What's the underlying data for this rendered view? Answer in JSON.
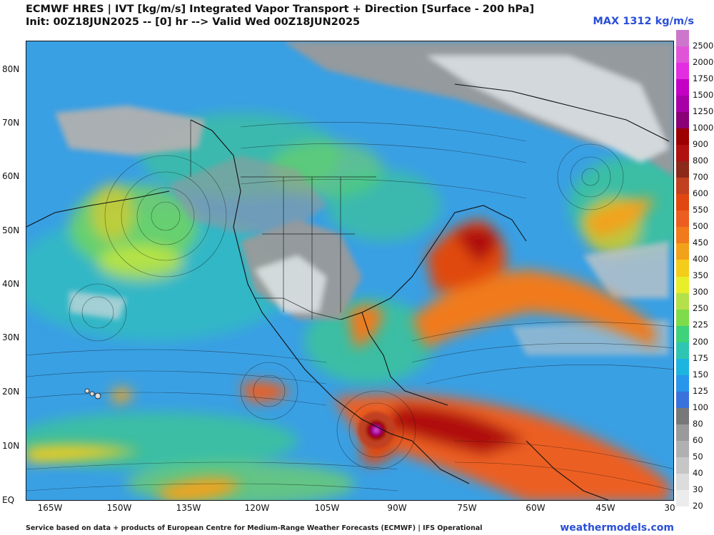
{
  "header": {
    "title_line1": "ECMWF HRES | IVT [kg/m/s] Integrated Vapor Transport + Direction [Surface - 200 hPa]",
    "title_line2": "Init: 00Z18JUN2025 -- [0] hr --> Valid Wed 00Z18JUN2025",
    "max_label": "MAX 1312 kg/m/s"
  },
  "axes": {
    "lat_labels": [
      "80N",
      "70N",
      "60N",
      "50N",
      "40N",
      "30N",
      "20N",
      "10N",
      "EQ"
    ],
    "lon_labels": [
      "165W",
      "150W",
      "135W",
      "120W",
      "105W",
      "90W",
      "75W",
      "60W",
      "45W",
      "30"
    ]
  },
  "legend": {
    "values": [
      "2500",
      "2000",
      "1750",
      "1500",
      "1250",
      "1000",
      "900",
      "800",
      "700",
      "600",
      "550",
      "500",
      "450",
      "400",
      "350",
      "300",
      "250",
      "225",
      "200",
      "175",
      "150",
      "125",
      "100",
      "80",
      "60",
      "50",
      "40",
      "30",
      "20"
    ],
    "colors": [
      "#cc77cc",
      "#e055d8",
      "#e22ee0",
      "#c400c4",
      "#a600a6",
      "#8a0077",
      "#9c0000",
      "#b01010",
      "#8b2a1a",
      "#c04020",
      "#e04810",
      "#ec5e20",
      "#f07a1c",
      "#f2a21a",
      "#f4cc1a",
      "#e8ee2a",
      "#b4e04a",
      "#7edc4a",
      "#3ed27a",
      "#2ec6b2",
      "#1eb4e0",
      "#2896ea",
      "#3a72dc",
      "#787878",
      "#9a9a9a",
      "#b0b0b0",
      "#c6c6c6",
      "#dcdcdc",
      "#ececec"
    ]
  },
  "map": {
    "background_color": "#3aa0e4",
    "land_border_color": "#111111",
    "features": [
      {
        "name": "north-atlantic-plume",
        "level": "500-700"
      },
      {
        "name": "central-american-plume",
        "level": "450-600"
      },
      {
        "name": "east-pacific-cyclone",
        "level": "1000-1312"
      },
      {
        "name": "northeast-pacific-low",
        "level": "250-350"
      }
    ]
  },
  "footer": {
    "credit": "Service based on data + products of European Centre for Medium-Range Weather Forecasts (ECMWF) | IFS Operational",
    "site": "weathermodels.com"
  }
}
